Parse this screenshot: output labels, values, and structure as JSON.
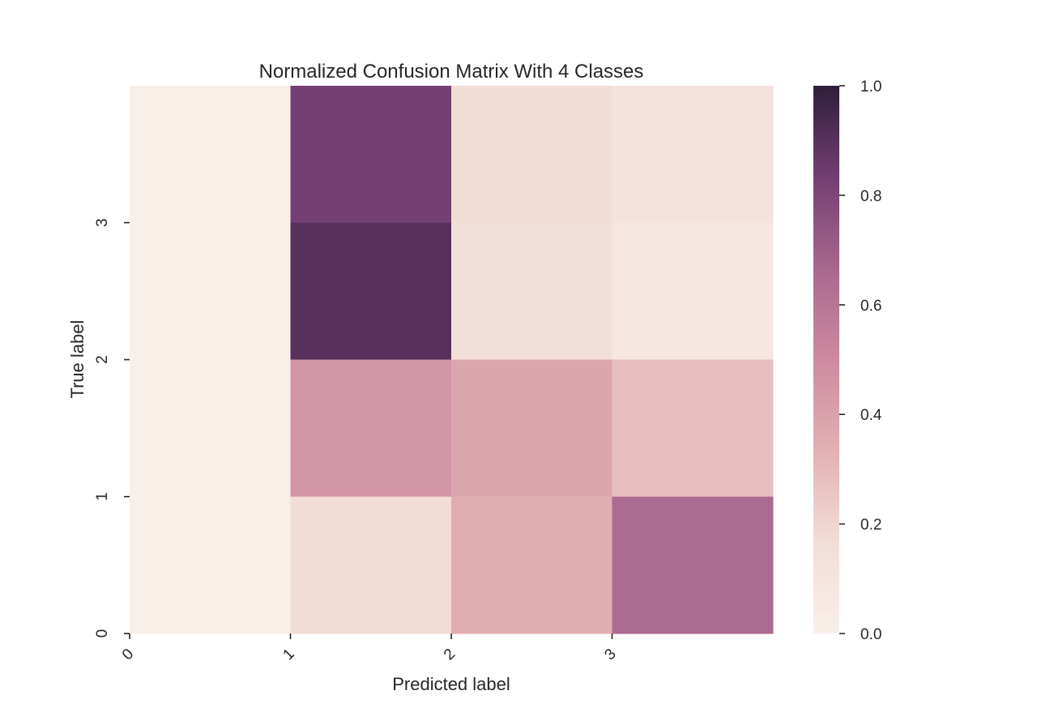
{
  "chart_data": {
    "type": "heatmap",
    "title": "Normalized Confusion Matrix With 4 Classes",
    "xlabel": "Predicted label",
    "ylabel": "True label",
    "x_ticks": [
      "0",
      "1",
      "2",
      "3"
    ],
    "y_ticks": [
      "0",
      "1",
      "2",
      "3"
    ],
    "rows": [
      {
        "values": [
          0.0,
          0.83,
          0.17,
          0.12
        ]
      },
      {
        "values": [
          0.0,
          0.9,
          0.15,
          0.08
        ]
      },
      {
        "values": [
          0.0,
          0.45,
          0.38,
          0.28
        ]
      },
      {
        "values": [
          0.0,
          0.17,
          0.35,
          0.65
        ]
      }
    ],
    "colorbar": {
      "min": 0.0,
      "max": 1.0,
      "ticks": [
        "0.0",
        "0.2",
        "0.4",
        "0.6",
        "0.8",
        "1.0"
      ],
      "colors": [
        "#f9efe9",
        "#f2ddd7",
        "#e2b1b3",
        "#cd8aa0",
        "#a8688e",
        "#733e72",
        "#2e1e3b"
      ]
    },
    "grid": false
  }
}
